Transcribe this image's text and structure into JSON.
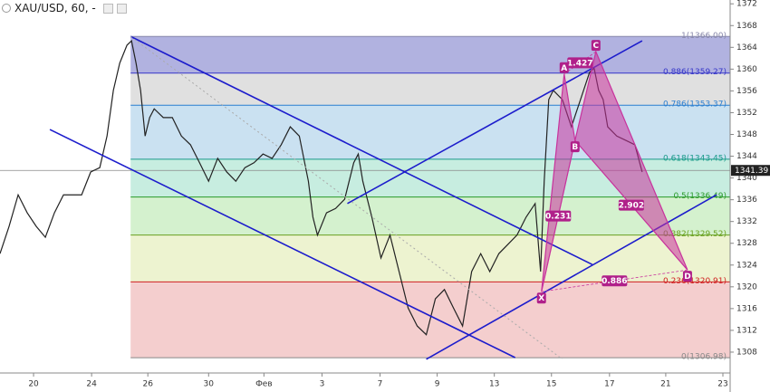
{
  "header": {
    "symbol": "XAU/USD, 60, -"
  },
  "chart_data": {
    "type": "line",
    "xlim": [
      0,
      161
    ],
    "ylim": [
      1304.5,
      1372.7
    ],
    "xticks": [
      {
        "value": 7.4,
        "label": "20"
      },
      {
        "value": 20.2,
        "label": "24"
      },
      {
        "value": 32.6,
        "label": "26"
      },
      {
        "value": 46,
        "label": "30"
      },
      {
        "value": 58.2,
        "label": "Фев"
      },
      {
        "value": 71,
        "label": "3"
      },
      {
        "value": 83.8,
        "label": "7"
      },
      {
        "value": 96.4,
        "label": "9"
      },
      {
        "value": 109,
        "label": "13"
      },
      {
        "value": 121.6,
        "label": "15"
      },
      {
        "value": 134.4,
        "label": "17"
      },
      {
        "value": 146.8,
        "label": "21"
      },
      {
        "value": 159.4,
        "label": "23"
      }
    ],
    "yticks": [
      1308,
      1312,
      1316,
      1320,
      1324,
      1328,
      1332,
      1336,
      1340,
      1344,
      1348,
      1352,
      1356,
      1360,
      1364,
      1368,
      1372
    ],
    "last_price": 1341.39,
    "series": [
      {
        "name": "XAU/USD",
        "color": "#222222",
        "x": [
          0,
          2,
          4,
          6,
          8,
          10,
          12,
          14,
          16,
          18,
          20,
          22,
          23.6,
          25,
          26.4,
          28,
          29,
          30,
          31,
          32,
          33,
          34,
          36,
          38,
          40,
          42,
          44,
          46,
          48,
          50,
          52,
          54,
          56,
          58,
          60,
          62,
          64,
          66,
          68,
          69,
          70,
          72,
          74,
          76,
          78,
          79,
          80,
          82,
          84,
          86,
          88,
          90,
          92,
          94,
          96,
          98,
          100,
          102,
          104,
          106,
          108,
          110,
          112,
          114,
          116,
          118,
          119.2,
          120,
          121,
          122,
          124,
          126,
          128,
          130,
          131,
          132,
          133,
          134,
          136,
          138,
          140,
          141.6
        ],
        "values": [
          1326.1,
          1331.1,
          1336.9,
          1333.6,
          1331.1,
          1329.1,
          1333.6,
          1336.9,
          1336.9,
          1336.9,
          1341.1,
          1341.9,
          1347.7,
          1356.1,
          1361.1,
          1364.4,
          1365.2,
          1361.1,
          1356.1,
          1347.7,
          1351.1,
          1352.7,
          1351.1,
          1351.1,
          1347.7,
          1346.1,
          1342.8,
          1339.4,
          1343.6,
          1341.1,
          1339.4,
          1341.9,
          1342.8,
          1344.4,
          1343.6,
          1346.1,
          1349.4,
          1347.7,
          1339.4,
          1332.8,
          1329.5,
          1333.6,
          1334.4,
          1336.1,
          1342.8,
          1344.4,
          1339.4,
          1332.8,
          1325.3,
          1329.5,
          1322.8,
          1316.1,
          1312.8,
          1311.2,
          1317.8,
          1319.5,
          1316.1,
          1312.8,
          1322.8,
          1326.1,
          1322.8,
          1326.1,
          1327.8,
          1329.5,
          1332.8,
          1335.3,
          1322.8,
          1339.4,
          1354.4,
          1356.1,
          1354.4,
          1349.4,
          1354.4,
          1359.4,
          1360.2,
          1356.1,
          1354.4,
          1349.4,
          1347.7,
          1346.9,
          1346.1,
          1341.1
        ]
      }
    ],
    "fib": {
      "x": [
        28.8,
        161
      ],
      "levels": [
        {
          "value": 1366.0,
          "label": "1(1366.00)",
          "color": "#8888aa",
          "fill": "#a3a4da"
        },
        {
          "value": 1359.27,
          "label": "0.886(1359.27)",
          "color": "#3535c8",
          "fill": "#dadada"
        },
        {
          "value": 1353.37,
          "label": "0.786(1353.37)",
          "color": "#2b7fd0",
          "fill": "#c1dcef"
        },
        {
          "value": 1343.45,
          "label": "0.618(1343.45)",
          "color": "#1a9a8a",
          "fill": "#bdeadb"
        },
        {
          "value": 1336.49,
          "label": "0.5(1336.49)",
          "color": "#2a9a2a",
          "fill": "#cdeec6"
        },
        {
          "value": 1329.52,
          "label": "0.382(1329.52)",
          "color": "#6aa020",
          "fill": "#eaf1c8"
        },
        {
          "value": 1320.91,
          "label": "0.236(1320.91)",
          "color": "#d02020",
          "fill": "#f2c6c6"
        },
        {
          "value": 1306.98,
          "label": "0(1306.98)",
          "color": "#888888"
        }
      ]
    },
    "trendlines": [
      {
        "color": "#1c1ccc",
        "points": [
          [
            28.8,
            1366.0
          ],
          [
            130.6,
            1324.1
          ]
        ]
      },
      {
        "color": "#1c1ccc",
        "points": [
          [
            11,
            1348.9
          ],
          [
            113.6,
            1307.0
          ]
        ]
      },
      {
        "color": "#1c1ccc",
        "points": [
          [
            76.6,
            1335.3
          ],
          [
            141.6,
            1365.2
          ]
        ]
      },
      {
        "color": "#1c1ccc",
        "points": [
          [
            94,
            1306.7
          ],
          [
            158,
            1336.9
          ]
        ]
      },
      {
        "color": "#aaaaaa",
        "dashed": true,
        "points": [
          [
            28.8,
            1366.0
          ],
          [
            124,
            1306.7
          ]
        ]
      }
    ],
    "pattern": {
      "color": "#c8329c",
      "points": [
        {
          "label": "X",
          "x": 119.4,
          "value": 1319.1
        },
        {
          "label": "A",
          "x": 124.4,
          "value": 1359.1
        },
        {
          "label": "B",
          "x": 126.8,
          "value": 1346.9
        },
        {
          "label": "C",
          "x": 131.4,
          "value": 1363.2
        },
        {
          "label": "D",
          "x": 151.6,
          "value": 1323.1
        }
      ],
      "legs": [
        {
          "points": [
            0,
            2
          ],
          "ratio": 0.231
        },
        {
          "points": [
            1,
            3
          ],
          "ratio": 1.427
        },
        {
          "points": [
            2,
            4
          ],
          "ratio": 2.902
        },
        {
          "points": [
            0,
            4
          ],
          "ratio": 0.886
        }
      ]
    }
  }
}
